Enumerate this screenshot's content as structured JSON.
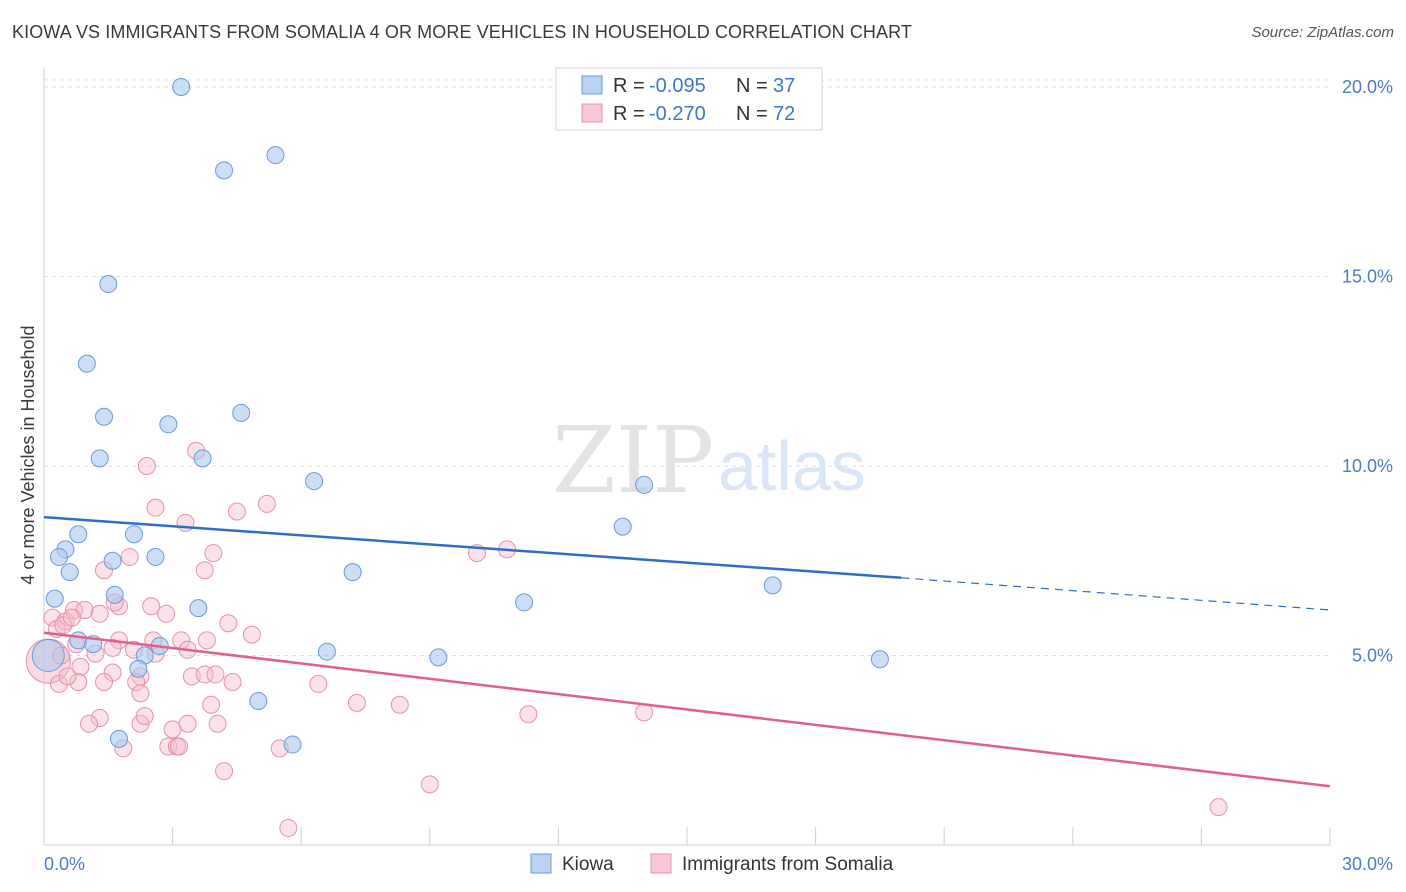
{
  "title": "KIOWA VS IMMIGRANTS FROM SOMALIA 4 OR MORE VEHICLES IN HOUSEHOLD CORRELATION CHART",
  "source": "Source: ZipAtlas.com",
  "watermark": {
    "part1": "ZIP",
    "part2": "atlas"
  },
  "chart_data": {
    "type": "scatter",
    "title": "KIOWA VS IMMIGRANTS FROM SOMALIA 4 OR MORE VEHICLES IN HOUSEHOLD CORRELATION CHART",
    "xlabel": "",
    "ylabel": "4 or more Vehicles in Household",
    "xlim": [
      0,
      30
    ],
    "ylim": [
      0,
      20.5
    ],
    "x_ticks": [
      0,
      3,
      6,
      9,
      12,
      15,
      18,
      21,
      24,
      27,
      30
    ],
    "x_tick_labels": {
      "min": "0.0%",
      "max": "30.0%"
    },
    "y_ticks": [
      5,
      10,
      15,
      20
    ],
    "y_tick_labels": [
      "5.0%",
      "10.0%",
      "15.0%",
      "20.0%"
    ],
    "grid": true,
    "legend": {
      "entries": [
        {
          "r_label": "R =",
          "r": "-0.095",
          "n_label": "N =",
          "n": "37"
        },
        {
          "r_label": "R =",
          "r": "-0.270",
          "n_label": "N =",
          "n": "72"
        }
      ],
      "placement": "top-center"
    },
    "series": [
      {
        "name": "Kiowa",
        "color": "#aac8ee",
        "stroke": "#6a9bd8",
        "line_color": "#2f6fc2",
        "trend": {
          "x0": 0,
          "y0": 8.65,
          "x1": 20,
          "y1": 7.05,
          "dash_to": 30,
          "dash_y": 6.2
        },
        "points": [
          [
            3.2,
            20.0
          ],
          [
            5.4,
            18.2
          ],
          [
            4.2,
            17.8
          ],
          [
            1.5,
            14.8
          ],
          [
            1.0,
            12.7
          ],
          [
            1.4,
            11.3
          ],
          [
            2.9,
            11.1
          ],
          [
            4.6,
            11.4
          ],
          [
            1.3,
            10.2
          ],
          [
            3.7,
            10.2
          ],
          [
            6.3,
            9.6
          ],
          [
            14.0,
            9.5
          ],
          [
            0.8,
            8.2
          ],
          [
            2.1,
            8.2
          ],
          [
            13.5,
            8.4
          ],
          [
            0.5,
            7.8
          ],
          [
            0.35,
            7.6
          ],
          [
            1.6,
            7.5
          ],
          [
            2.6,
            7.6
          ],
          [
            7.2,
            7.2
          ],
          [
            0.6,
            7.2
          ],
          [
            17.0,
            6.85
          ],
          [
            0.25,
            6.5
          ],
          [
            1.65,
            6.6
          ],
          [
            3.6,
            6.25
          ],
          [
            11.2,
            6.4
          ],
          [
            0.8,
            5.4
          ],
          [
            1.15,
            5.3
          ],
          [
            2.7,
            5.25
          ],
          [
            2.35,
            5.0
          ],
          [
            6.6,
            5.1
          ],
          [
            9.2,
            4.95
          ],
          [
            19.5,
            4.9
          ],
          [
            2.2,
            4.65
          ],
          [
            5.0,
            3.8
          ],
          [
            1.75,
            2.8
          ],
          [
            5.8,
            2.65
          ]
        ],
        "big_point": [
          0.1,
          5.0
        ]
      },
      {
        "name": "Immigrants from Somalia",
        "color": "#f6bccd",
        "stroke": "#e591aa",
        "line_color": "#e0608c",
        "trend": {
          "x0": 0,
          "y0": 5.6,
          "x1": 30,
          "y1": 1.55
        },
        "points": [
          [
            3.55,
            10.4
          ],
          [
            2.4,
            10.0
          ],
          [
            5.2,
            9.0
          ],
          [
            2.6,
            8.9
          ],
          [
            4.5,
            8.8
          ],
          [
            3.3,
            8.5
          ],
          [
            3.95,
            7.7
          ],
          [
            10.1,
            7.7
          ],
          [
            10.8,
            7.8
          ],
          [
            2.0,
            7.6
          ],
          [
            1.4,
            7.25
          ],
          [
            3.75,
            7.25
          ],
          [
            0.2,
            6.0
          ],
          [
            0.5,
            5.9
          ],
          [
            0.7,
            6.2
          ],
          [
            0.95,
            6.2
          ],
          [
            1.75,
            6.3
          ],
          [
            2.5,
            6.3
          ],
          [
            2.85,
            6.1
          ],
          [
            0.3,
            5.7
          ],
          [
            0.45,
            5.8
          ],
          [
            0.65,
            6.0
          ],
          [
            1.3,
            6.1
          ],
          [
            1.65,
            6.4
          ],
          [
            4.3,
            5.85
          ],
          [
            4.85,
            5.55
          ],
          [
            3.8,
            5.4
          ],
          [
            3.2,
            5.4
          ],
          [
            2.55,
            5.4
          ],
          [
            1.75,
            5.4
          ],
          [
            0.75,
            5.3
          ],
          [
            1.6,
            5.2
          ],
          [
            2.1,
            5.15
          ],
          [
            3.35,
            5.15
          ],
          [
            0.4,
            5.0
          ],
          [
            1.2,
            5.05
          ],
          [
            2.6,
            5.05
          ],
          [
            0.85,
            4.7
          ],
          [
            1.6,
            4.55
          ],
          [
            2.25,
            4.45
          ],
          [
            3.45,
            4.45
          ],
          [
            3.75,
            4.5
          ],
          [
            4.0,
            4.5
          ],
          [
            4.4,
            4.3
          ],
          [
            6.4,
            4.25
          ],
          [
            0.35,
            4.25
          ],
          [
            0.8,
            4.3
          ],
          [
            1.4,
            4.3
          ],
          [
            2.15,
            4.3
          ],
          [
            2.25,
            4.0
          ],
          [
            3.9,
            3.7
          ],
          [
            8.3,
            3.7
          ],
          [
            1.3,
            3.35
          ],
          [
            1.05,
            3.2
          ],
          [
            2.25,
            3.2
          ],
          [
            2.35,
            3.4
          ],
          [
            3.35,
            3.2
          ],
          [
            3.0,
            3.05
          ],
          [
            4.05,
            3.2
          ],
          [
            11.3,
            3.45
          ],
          [
            14.0,
            3.5
          ],
          [
            2.9,
            2.6
          ],
          [
            3.1,
            2.6
          ],
          [
            3.15,
            2.6
          ],
          [
            5.5,
            2.55
          ],
          [
            4.2,
            1.95
          ],
          [
            9.0,
            1.6
          ],
          [
            5.7,
            0.45
          ],
          [
            27.4,
            1.0
          ],
          [
            7.3,
            3.75
          ],
          [
            1.85,
            2.55
          ],
          [
            0.55,
            4.45
          ]
        ],
        "big_point": [
          0.1,
          4.85
        ]
      }
    ]
  },
  "bottom_legend": [
    "Kiowa",
    "Immigrants from Somalia"
  ]
}
